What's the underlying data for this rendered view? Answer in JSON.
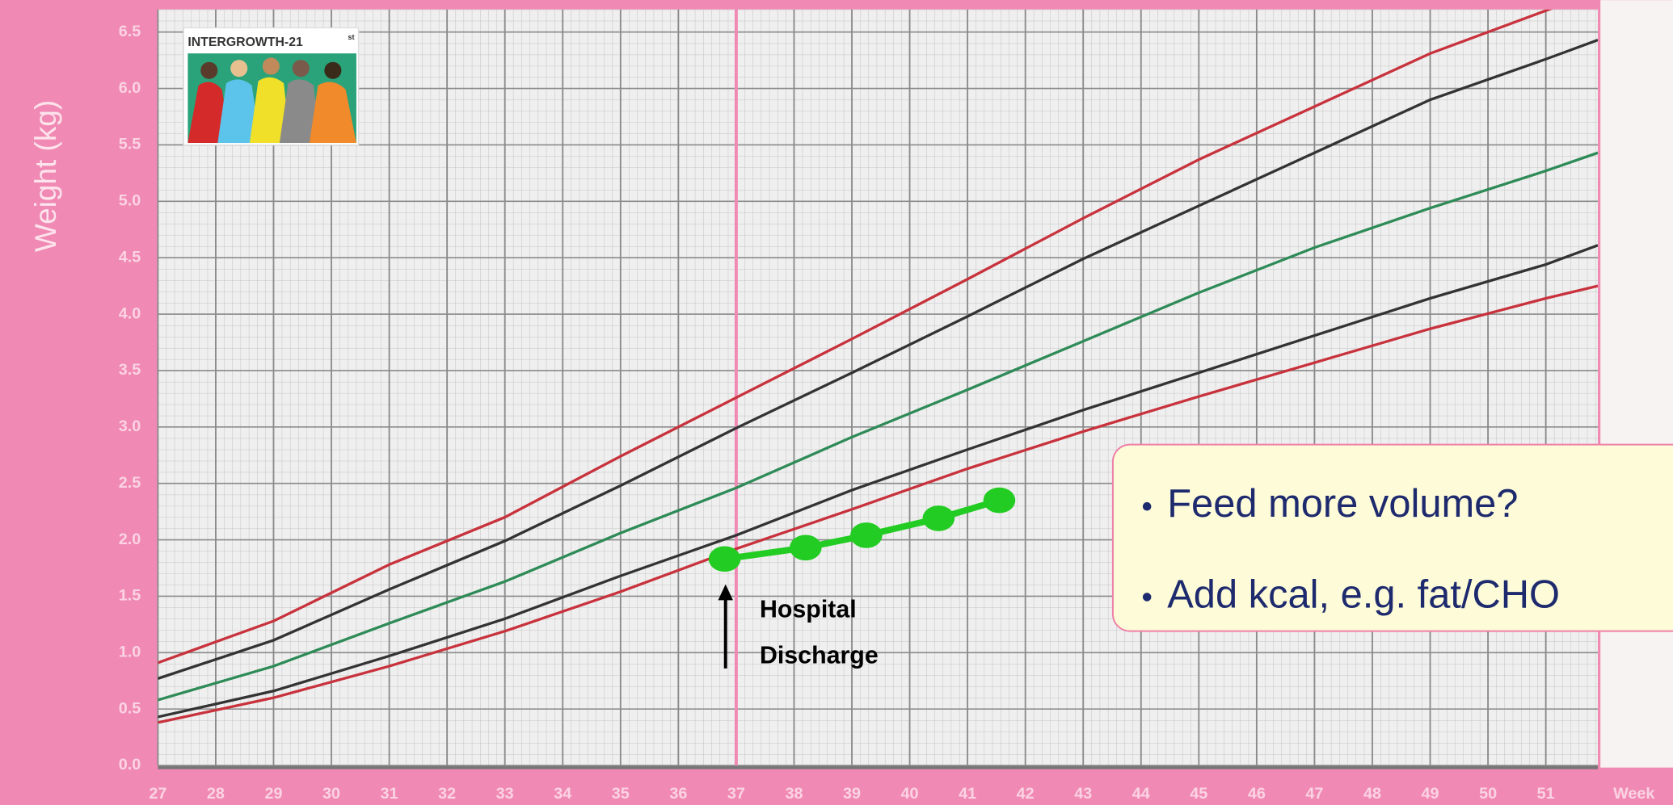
{
  "chart_data": {
    "type": "line",
    "y_label": "Weight (kg)",
    "x_label": "Week",
    "logo": {
      "title": "INTERGROWTH-21",
      "superscript": "st"
    },
    "x": [
      27,
      29,
      31,
      33,
      35,
      37,
      39,
      41,
      43,
      45,
      47,
      49,
      51,
      51.9
    ],
    "series": [
      {
        "color": "#c8323c",
        "values": [
          0.91,
          1.28,
          1.78,
          2.2,
          2.74,
          3.26,
          3.78,
          4.31,
          4.85,
          5.37,
          5.84,
          6.31,
          6.69,
          6.86
        ]
      },
      {
        "color": "#333333",
        "values": [
          0.77,
          1.11,
          1.56,
          1.99,
          2.48,
          2.99,
          3.48,
          3.98,
          4.49,
          4.96,
          5.43,
          5.9,
          6.26,
          6.43
        ]
      },
      {
        "color": "#2e8b57",
        "values": [
          0.58,
          0.88,
          1.26,
          1.63,
          2.06,
          2.46,
          2.91,
          3.33,
          3.76,
          4.19,
          4.59,
          4.94,
          5.27,
          5.43
        ]
      },
      {
        "color": "#333333",
        "values": [
          0.43,
          0.66,
          0.97,
          1.3,
          1.68,
          2.04,
          2.44,
          2.8,
          3.15,
          3.48,
          3.81,
          4.14,
          4.44,
          4.61
        ]
      },
      {
        "color": "#c8323c",
        "values": [
          0.38,
          0.6,
          0.88,
          1.19,
          1.54,
          1.92,
          2.27,
          2.63,
          2.96,
          3.27,
          3.57,
          3.87,
          4.14,
          4.25
        ]
      }
    ],
    "points": {
      "color": "#22cc22",
      "x": [
        36.8,
        38.2,
        39.25,
        40.5,
        41.55
      ],
      "values": [
        1.83,
        1.93,
        2.04,
        2.19,
        2.35
      ]
    },
    "marker_line_x": 37,
    "annotation": [
      "Hospital",
      "Discharge"
    ],
    "callout": [
      "Feed more volume?",
      "Add kcal, e.g. fat/CHO"
    ],
    "xlim": [
      27,
      51.9
    ],
    "ylim": [
      0,
      6.7
    ],
    "xticks": [
      27,
      28,
      29,
      30,
      31,
      32,
      33,
      34,
      35,
      36,
      37,
      38,
      39,
      40,
      41,
      42,
      43,
      44,
      45,
      46,
      47,
      48,
      49,
      50,
      51
    ],
    "yticks": [
      {
        "value": 0,
        "label": "0.0"
      },
      0.5,
      {
        "value": 1,
        "label": "1.0"
      },
      1.5,
      {
        "value": 2,
        "label": "2.0"
      },
      2.5,
      {
        "value": 3,
        "label": "3.0"
      },
      3.5,
      {
        "value": 4,
        "label": "4.0"
      },
      4.5,
      {
        "value": 5,
        "label": "5.0"
      },
      5.5,
      {
        "value": 6,
        "label": "6.0"
      },
      6.5
    ],
    "grid": true
  }
}
